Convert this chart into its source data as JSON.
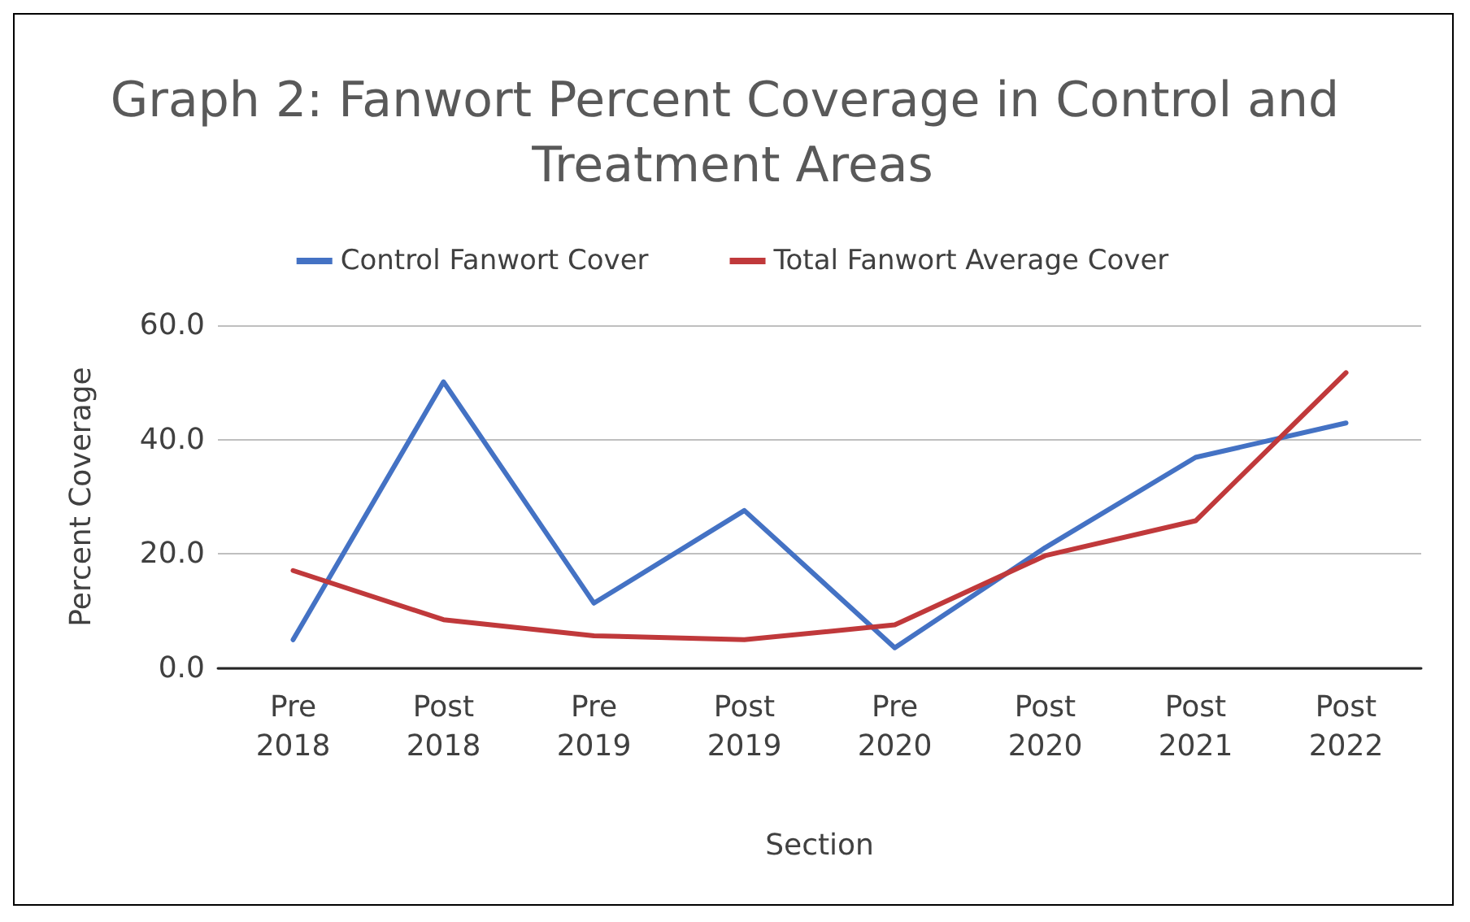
{
  "chart_data": {
    "type": "line",
    "title": "Graph 2: Fanwort Percent Coverage in Control and Treatment Areas",
    "xlabel": "Section",
    "ylabel": "Percent Coverage",
    "categories": [
      "Pre 2018",
      "Post 2018",
      "Pre 2019",
      "Post 2019",
      "Pre 2020",
      "Post 2020",
      "Post 2021",
      "Post 2022"
    ],
    "series": [
      {
        "name": "Control Fanwort Cover",
        "color": "#4472c4",
        "values": [
          5.0,
          50.1,
          11.4,
          27.6,
          3.6,
          21.1,
          36.9,
          42.9
        ]
      },
      {
        "name": "Total Fanwort Average Cover",
        "color": "#c0393b",
        "values": [
          17.1,
          8.5,
          5.7,
          5.0,
          7.6,
          19.7,
          25.8,
          51.7
        ]
      }
    ],
    "ylim": [
      0,
      60
    ],
    "yticks": [
      {
        "value": 0,
        "label": "0.0"
      },
      {
        "value": 20,
        "label": "20.0"
      },
      {
        "value": 40,
        "label": "40.0"
      },
      {
        "value": 60,
        "label": "60.0"
      }
    ],
    "grid": "y",
    "legend": "top",
    "marker": "none",
    "line_style": "solid"
  }
}
